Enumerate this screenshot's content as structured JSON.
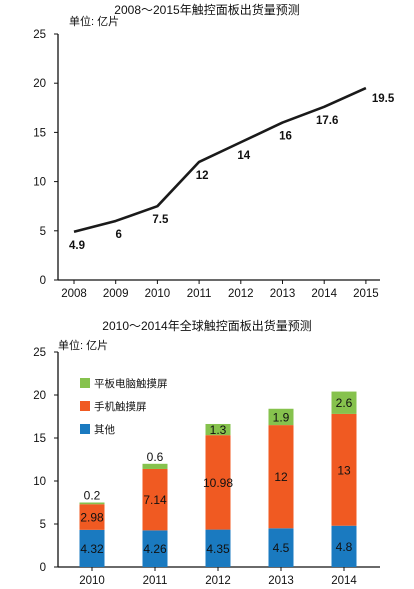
{
  "chart_data": [
    {
      "type": "line",
      "title": "2008～2015年触控面板出货量预测",
      "unit": "单位: 亿片",
      "x": [
        "2008",
        "2009",
        "2010",
        "2011",
        "2012",
        "2013",
        "2014",
        "2015"
      ],
      "values": [
        4.9,
        6,
        7.5,
        12,
        14,
        16,
        17.6,
        19.5
      ],
      "data_labels": [
        "4.9",
        "6",
        "7.5",
        "12",
        "14",
        "16",
        "17.6",
        "19.5"
      ],
      "ylim": [
        0,
        25
      ],
      "yticks": [
        "0",
        "5",
        "10",
        "15",
        "20",
        "25"
      ],
      "grid": false,
      "color": "#1a1a1a"
    },
    {
      "type": "bar",
      "stacked": true,
      "title": "2010～2014年全球触控面板出货量预测",
      "unit": "单位: 亿片",
      "categories": [
        "2010",
        "2011",
        "2012",
        "2013",
        "2014"
      ],
      "series": [
        {
          "name": "其他",
          "color": "#1a7ac0",
          "values": [
            4.32,
            4.26,
            4.35,
            4.5,
            4.8
          ],
          "labels": [
            "4.32",
            "4.26",
            "4.35",
            "4.5",
            "4.8"
          ]
        },
        {
          "name": "手机触摸屏",
          "color": "#f05a22",
          "values": [
            2.98,
            7.14,
            10.98,
            12,
            13
          ],
          "labels": [
            "2.98",
            "7.14",
            "10.98",
            "12",
            "13"
          ]
        },
        {
          "name": "平板电脑触摸屏",
          "color": "#86c24d",
          "values": [
            0.2,
            0.6,
            1.3,
            1.9,
            2.6
          ],
          "labels": [
            "0.2",
            "0.6",
            "1.3",
            "1.9",
            "2.6"
          ]
        }
      ],
      "legend_order": [
        "平板电脑触摸屏",
        "手机触摸屏",
        "其他"
      ],
      "legend_position": "top-left",
      "ylim": [
        0,
        25
      ],
      "yticks": [
        "0",
        "5",
        "10",
        "15",
        "20",
        "25"
      ],
      "grid": false
    }
  ]
}
